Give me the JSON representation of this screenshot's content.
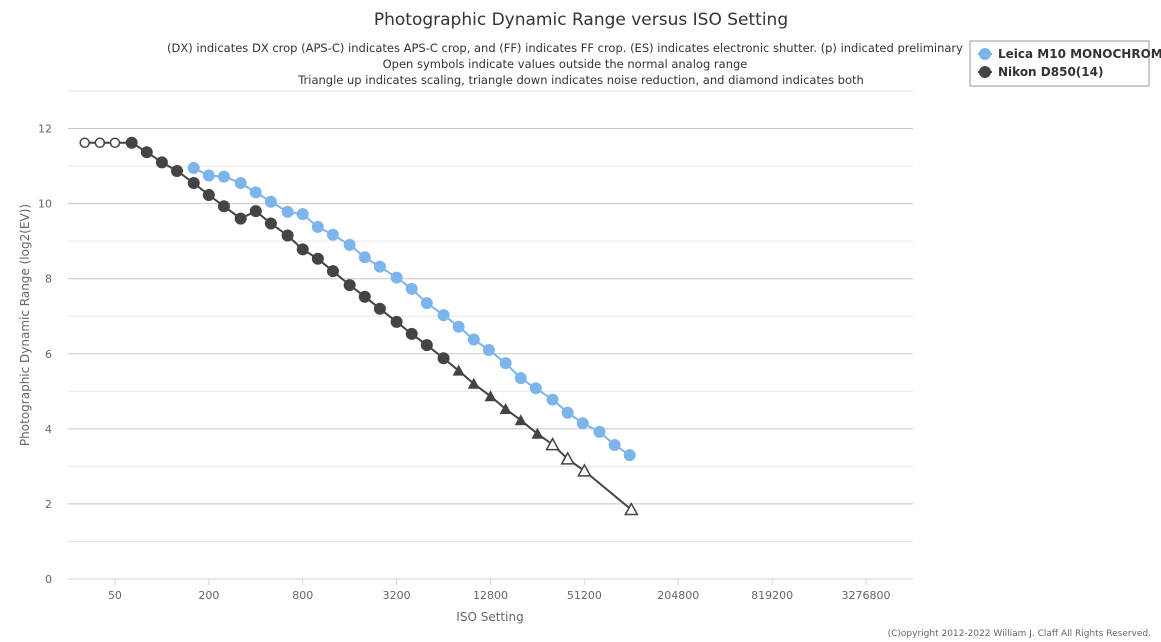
{
  "chart_data": {
    "type": "line",
    "title": "Photographic Dynamic Range versus ISO Setting",
    "subtitle_lines": [
      "(DX) indicates DX crop (APS-C) indicates APS-C crop, and (FF) indicates FF crop. (ES) indicates electronic shutter. (p) indicated preliminary",
      "Open symbols indicate values outside the normal analog range",
      "Triangle up indicates scaling, triangle down indicates noise reduction, and diamond indicates both"
    ],
    "xlabel": "ISO Setting",
    "ylabel": "Photographic Dynamic Range (log2(EV))",
    "x_scale": "log2",
    "xlim": [
      25,
      6553600
    ],
    "x_ticks": [
      50,
      200,
      800,
      3200,
      12800,
      51200,
      204800,
      819200,
      3276800
    ],
    "ylim": [
      0,
      13
    ],
    "y_ticks": [
      0,
      2,
      4,
      6,
      8,
      10,
      12
    ],
    "grid": true,
    "legend_position": "top-right",
    "credit": "(C)opyright 2012-2022 William J. Claff All Rights Reserved.",
    "series": [
      {
        "name": "Leica M10 MONOCHROM",
        "color": "#7cb5ec",
        "points": [
          {
            "x": 160,
            "y": 10.95,
            "marker": "circle"
          },
          {
            "x": 200,
            "y": 10.75,
            "marker": "circle"
          },
          {
            "x": 250,
            "y": 10.72,
            "marker": "circle"
          },
          {
            "x": 320,
            "y": 10.55,
            "marker": "circle"
          },
          {
            "x": 400,
            "y": 10.3,
            "marker": "circle"
          },
          {
            "x": 500,
            "y": 10.05,
            "marker": "circle"
          },
          {
            "x": 640,
            "y": 9.78,
            "marker": "circle"
          },
          {
            "x": 800,
            "y": 9.72,
            "marker": "circle"
          },
          {
            "x": 1000,
            "y": 9.38,
            "marker": "circle"
          },
          {
            "x": 1250,
            "y": 9.17,
            "marker": "circle"
          },
          {
            "x": 1600,
            "y": 8.9,
            "marker": "circle"
          },
          {
            "x": 2000,
            "y": 8.57,
            "marker": "circle"
          },
          {
            "x": 2500,
            "y": 8.32,
            "marker": "circle"
          },
          {
            "x": 3200,
            "y": 8.03,
            "marker": "circle"
          },
          {
            "x": 4000,
            "y": 7.73,
            "marker": "circle"
          },
          {
            "x": 5000,
            "y": 7.35,
            "marker": "circle"
          },
          {
            "x": 6400,
            "y": 7.03,
            "marker": "circle"
          },
          {
            "x": 8000,
            "y": 6.72,
            "marker": "circle"
          },
          {
            "x": 10000,
            "y": 6.38,
            "marker": "circle"
          },
          {
            "x": 12500,
            "y": 6.1,
            "marker": "circle"
          },
          {
            "x": 16000,
            "y": 5.75,
            "marker": "circle"
          },
          {
            "x": 20000,
            "y": 5.35,
            "marker": "circle"
          },
          {
            "x": 25000,
            "y": 5.08,
            "marker": "circle"
          },
          {
            "x": 32000,
            "y": 4.78,
            "marker": "circle"
          },
          {
            "x": 40000,
            "y": 4.43,
            "marker": "circle"
          },
          {
            "x": 50000,
            "y": 4.15,
            "marker": "circle"
          },
          {
            "x": 64000,
            "y": 3.92,
            "marker": "circle"
          },
          {
            "x": 80000,
            "y": 3.57,
            "marker": "circle"
          },
          {
            "x": 100000,
            "y": 3.3,
            "marker": "circle"
          }
        ]
      },
      {
        "name": "Nikon D850(14)",
        "color": "#434348",
        "points": [
          {
            "x": 32,
            "y": 11.62,
            "marker": "circle-open"
          },
          {
            "x": 40,
            "y": 11.62,
            "marker": "circle-open"
          },
          {
            "x": 50,
            "y": 11.62,
            "marker": "circle-open"
          },
          {
            "x": 64,
            "y": 11.62,
            "marker": "circle"
          },
          {
            "x": 80,
            "y": 11.37,
            "marker": "circle"
          },
          {
            "x": 100,
            "y": 11.1,
            "marker": "circle"
          },
          {
            "x": 125,
            "y": 10.87,
            "marker": "circle"
          },
          {
            "x": 160,
            "y": 10.55,
            "marker": "circle"
          },
          {
            "x": 200,
            "y": 10.23,
            "marker": "circle"
          },
          {
            "x": 250,
            "y": 9.93,
            "marker": "circle"
          },
          {
            "x": 320,
            "y": 9.6,
            "marker": "circle"
          },
          {
            "x": 400,
            "y": 9.8,
            "marker": "circle"
          },
          {
            "x": 500,
            "y": 9.47,
            "marker": "circle"
          },
          {
            "x": 640,
            "y": 9.15,
            "marker": "circle"
          },
          {
            "x": 800,
            "y": 8.78,
            "marker": "circle"
          },
          {
            "x": 1000,
            "y": 8.53,
            "marker": "circle"
          },
          {
            "x": 1250,
            "y": 8.2,
            "marker": "circle"
          },
          {
            "x": 1600,
            "y": 7.83,
            "marker": "circle"
          },
          {
            "x": 2000,
            "y": 7.52,
            "marker": "circle"
          },
          {
            "x": 2500,
            "y": 7.2,
            "marker": "circle"
          },
          {
            "x": 3200,
            "y": 6.85,
            "marker": "circle"
          },
          {
            "x": 4000,
            "y": 6.53,
            "marker": "circle"
          },
          {
            "x": 5000,
            "y": 6.23,
            "marker": "circle"
          },
          {
            "x": 6400,
            "y": 5.88,
            "marker": "circle"
          },
          {
            "x": 8000,
            "y": 5.55,
            "marker": "triangle-up"
          },
          {
            "x": 10000,
            "y": 5.2,
            "marker": "triangle-up"
          },
          {
            "x": 12800,
            "y": 4.87,
            "marker": "triangle-up"
          },
          {
            "x": 16000,
            "y": 4.53,
            "marker": "triangle-up"
          },
          {
            "x": 20000,
            "y": 4.23,
            "marker": "triangle-up"
          },
          {
            "x": 25600,
            "y": 3.87,
            "marker": "triangle-up"
          },
          {
            "x": 32000,
            "y": 3.58,
            "marker": "triangle-up-open"
          },
          {
            "x": 40000,
            "y": 3.2,
            "marker": "triangle-up-open"
          },
          {
            "x": 51200,
            "y": 2.88,
            "marker": "triangle-up-open"
          },
          {
            "x": 102400,
            "y": 1.85,
            "marker": "triangle-up-open"
          }
        ]
      }
    ]
  }
}
